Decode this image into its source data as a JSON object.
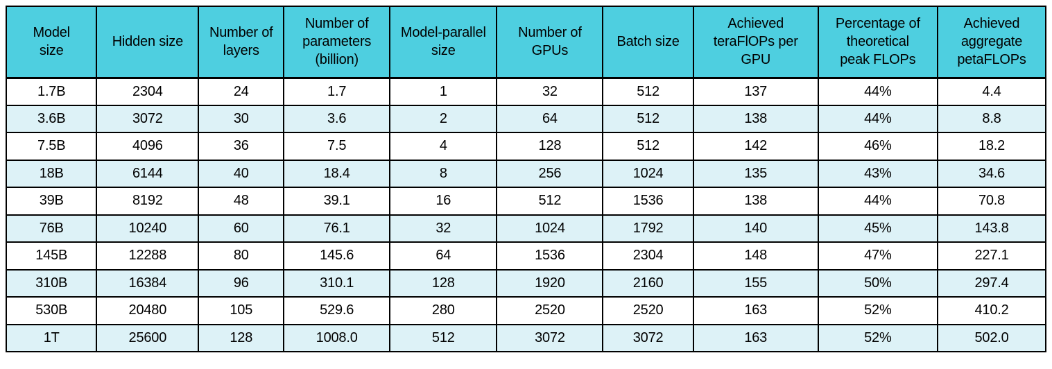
{
  "chart_data": {
    "type": "table",
    "title": "",
    "columns": [
      "Model\nsize",
      "Hidden size",
      "Number of\nlayers",
      "Number of\nparameters\n(billion)",
      "Model-parallel\nsize",
      "Number of\nGPUs",
      "Batch size",
      "Achieved\nteraFlOPs per\nGPU",
      "Percentage of\ntheoretical\npeak FLOPs",
      "Achieved\naggregate\npetaFLOPs"
    ],
    "rows": [
      [
        "1.7B",
        "2304",
        "24",
        "1.7",
        "1",
        "32",
        "512",
        "137",
        "44%",
        "4.4"
      ],
      [
        "3.6B",
        "3072",
        "30",
        "3.6",
        "2",
        "64",
        "512",
        "138",
        "44%",
        "8.8"
      ],
      [
        "7.5B",
        "4096",
        "36",
        "7.5",
        "4",
        "128",
        "512",
        "142",
        "46%",
        "18.2"
      ],
      [
        "18B",
        "6144",
        "40",
        "18.4",
        "8",
        "256",
        "1024",
        "135",
        "43%",
        "34.6"
      ],
      [
        "39B",
        "8192",
        "48",
        "39.1",
        "16",
        "512",
        "1536",
        "138",
        "44%",
        "70.8"
      ],
      [
        "76B",
        "10240",
        "60",
        "76.1",
        "32",
        "1024",
        "1792",
        "140",
        "45%",
        "143.8"
      ],
      [
        "145B",
        "12288",
        "80",
        "145.6",
        "64",
        "1536",
        "2304",
        "148",
        "47%",
        "227.1"
      ],
      [
        "310B",
        "16384",
        "96",
        "310.1",
        "128",
        "1920",
        "2160",
        "155",
        "50%",
        "297.4"
      ],
      [
        "530B",
        "20480",
        "105",
        "529.6",
        "280",
        "2520",
        "2520",
        "163",
        "52%",
        "410.2"
      ],
      [
        "1T",
        "25600",
        "128",
        "1008.0",
        "512",
        "3072",
        "3072",
        "163",
        "52%",
        "502.0"
      ]
    ]
  },
  "colors": {
    "header_bg": "#4ecfe0",
    "row_bg": "#ffffff",
    "row_alt_bg": "#ddf2f7",
    "border": "#000000",
    "text": "#000000"
  }
}
